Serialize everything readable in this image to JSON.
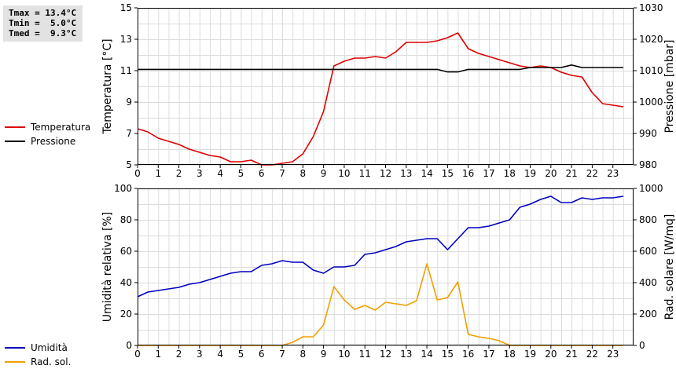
{
  "stats": {
    "tmax": "Tmax = 13.4°C",
    "tmin": "Tmin =  5.0°C",
    "tmed": "Tmed =  9.3°C"
  },
  "legend_top": [
    {
      "label": "Temperatura",
      "color": "#dd0000"
    },
    {
      "label": "Pressione",
      "color": "#000000"
    }
  ],
  "legend_bottom": [
    {
      "label": "Umidità",
      "color": "#0000c0"
    },
    {
      "label": "Rad. sol.",
      "color": "#f0a000"
    }
  ],
  "chart_data": [
    {
      "type": "line",
      "xlabel": "",
      "ylabel": "Temperatura [°C]",
      "y2label": "Pressione [mbar]",
      "xlim": [
        0,
        24
      ],
      "xticks": [
        0,
        1,
        2,
        3,
        4,
        5,
        6,
        7,
        8,
        9,
        10,
        11,
        12,
        13,
        14,
        15,
        16,
        17,
        18,
        19,
        20,
        21,
        22,
        23
      ],
      "ylim": [
        5,
        15
      ],
      "yticks": [
        5,
        7,
        9,
        11,
        13,
        15
      ],
      "y2lim": [
        980,
        1030
      ],
      "y2ticks": [
        980,
        990,
        1000,
        1010,
        1020,
        1030
      ],
      "grid": true,
      "series": [
        {
          "name": "Temperatura",
          "axis": "left",
          "color": "#dd0000",
          "x": [
            0,
            0.5,
            1,
            1.5,
            2,
            2.5,
            3,
            3.5,
            4,
            4.5,
            5,
            5.5,
            6,
            6.5,
            7,
            7.5,
            8,
            8.5,
            9,
            9.5,
            10,
            10.5,
            11,
            11.5,
            12,
            12.5,
            13,
            13.5,
            14,
            14.5,
            15,
            15.5,
            16,
            16.5,
            17,
            17.5,
            18,
            18.5,
            19,
            19.5,
            20,
            20.5,
            21,
            21.5,
            22,
            22.5,
            23,
            23.5
          ],
          "values": [
            7.3,
            7.1,
            6.7,
            6.5,
            6.3,
            6.0,
            5.8,
            5.6,
            5.5,
            5.2,
            5.2,
            5.3,
            5.0,
            5.0,
            5.1,
            5.2,
            5.7,
            6.8,
            8.4,
            11.3,
            11.6,
            11.8,
            11.8,
            11.9,
            11.8,
            12.2,
            12.8,
            12.8,
            12.8,
            12.9,
            13.1,
            13.4,
            12.4,
            12.1,
            11.9,
            11.7,
            11.5,
            11.3,
            11.2,
            11.3,
            11.2,
            10.9,
            10.7,
            10.6,
            9.6,
            8.9,
            8.8,
            8.7
          ]
        },
        {
          "name": "Pressione",
          "axis": "right",
          "color": "#000000",
          "x": [
            0,
            14.5,
            15,
            15.5,
            16,
            18.5,
            19,
            20.5,
            21,
            21.5,
            22,
            23.5
          ],
          "values": [
            1010.4,
            1010.4,
            1009.6,
            1009.6,
            1010.4,
            1010.4,
            1011.0,
            1011.0,
            1011.8,
            1011.0,
            1011.0,
            1011.0
          ]
        }
      ]
    },
    {
      "type": "line",
      "xlabel": "",
      "ylabel": "Umidità relativa [%]",
      "y2label": "Rad. solare [W/mq]",
      "xlim": [
        0,
        24
      ],
      "xticks": [
        0,
        1,
        2,
        3,
        4,
        5,
        6,
        7,
        8,
        9,
        10,
        11,
        12,
        13,
        14,
        15,
        16,
        17,
        18,
        19,
        20,
        21,
        22,
        23
      ],
      "ylim": [
        0,
        100
      ],
      "yticks": [
        0,
        20,
        40,
        60,
        80,
        100
      ],
      "y2lim": [
        0,
        1000
      ],
      "y2ticks": [
        0,
        200,
        400,
        600,
        800,
        1000
      ],
      "grid": true,
      "series": [
        {
          "name": "Umidità",
          "axis": "left",
          "color": "#0000c0",
          "x": [
            0,
            0.5,
            1,
            1.5,
            2,
            2.5,
            3,
            3.5,
            4,
            4.5,
            5,
            5.5,
            6,
            6.5,
            7,
            7.5,
            8,
            8.5,
            9,
            9.5,
            10,
            10.5,
            11,
            11.5,
            12,
            12.5,
            13,
            13.5,
            14,
            14.5,
            15,
            15.5,
            16,
            16.5,
            17,
            17.5,
            18,
            18.5,
            19,
            19.5,
            20,
            20.5,
            21,
            21.5,
            22,
            22.5,
            23,
            23.5
          ],
          "values": [
            31,
            34,
            35,
            36,
            37,
            39,
            40,
            42,
            44,
            46,
            47,
            47,
            51,
            52,
            54,
            53,
            53,
            48,
            46,
            50,
            50,
            51,
            58,
            59,
            61,
            63,
            66,
            67,
            68,
            68,
            61,
            68,
            75,
            75,
            76,
            78,
            80,
            88,
            90,
            93,
            95,
            91,
            91,
            94,
            93,
            94,
            94,
            95
          ]
        },
        {
          "name": "Rad. sol.",
          "axis": "right",
          "color": "#f0a000",
          "x": [
            0,
            7,
            7.5,
            8,
            8.5,
            9,
            9.5,
            10,
            10.5,
            11,
            11.5,
            12,
            12.5,
            13,
            13.5,
            14,
            14.5,
            15,
            15.5,
            16,
            16.5,
            17,
            17.5,
            18,
            23.5
          ],
          "values": [
            0,
            0,
            20,
            55,
            55,
            130,
            375,
            290,
            230,
            255,
            225,
            275,
            265,
            255,
            285,
            520,
            290,
            305,
            405,
            70,
            55,
            45,
            30,
            0,
            0
          ]
        }
      ]
    }
  ]
}
